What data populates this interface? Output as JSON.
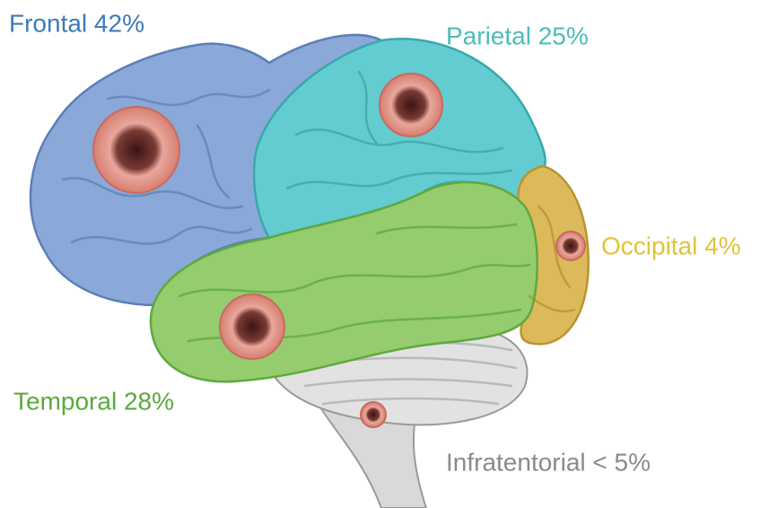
{
  "labels": {
    "frontal": "Frontal 42%",
    "parietal": "Parietal 25%",
    "occipital": "Occipital 4%",
    "temporal": "Temporal 28%",
    "infratentorial": "Infratentorial < 5%"
  }
}
